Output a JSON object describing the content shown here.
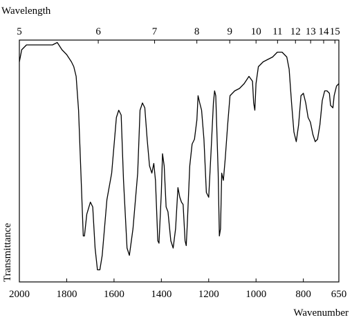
{
  "chart_data": {
    "type": "line",
    "x2_label": "Wavelength",
    "xlabel": "Wavenumber",
    "ylabel": "Transmittance",
    "xlim": [
      2000,
      650
    ],
    "xticks": [
      2000,
      1800,
      1600,
      1400,
      1200,
      1000,
      800,
      650
    ],
    "x2ticks": [
      5,
      6,
      7,
      8,
      9,
      10,
      11,
      12,
      13,
      14,
      15
    ],
    "ylim": [
      0,
      100
    ],
    "color": "#000000",
    "x": [
      2000,
      1990,
      1970,
      1940,
      1900,
      1860,
      1840,
      1820,
      1800,
      1780,
      1770,
      1760,
      1750,
      1740,
      1730,
      1725,
      1715,
      1700,
      1690,
      1680,
      1670,
      1660,
      1650,
      1630,
      1610,
      1590,
      1580,
      1570,
      1560,
      1545,
      1535,
      1520,
      1500,
      1490,
      1480,
      1470,
      1460,
      1450,
      1440,
      1432,
      1425,
      1415,
      1410,
      1400,
      1395,
      1388,
      1380,
      1372,
      1360,
      1350,
      1340,
      1330,
      1322,
      1315,
      1308,
      1300,
      1295,
      1290,
      1280,
      1270,
      1260,
      1250,
      1245,
      1238,
      1230,
      1220,
      1210,
      1200,
      1190,
      1180,
      1175,
      1170,
      1160,
      1155,
      1150,
      1145,
      1138,
      1130,
      1120,
      1110,
      1090,
      1070,
      1050,
      1030,
      1015,
      1010,
      1005,
      1000,
      990,
      970,
      950,
      930,
      910,
      890,
      870,
      860,
      850,
      840,
      830,
      820,
      810,
      800,
      790,
      780,
      770,
      760,
      750,
      740,
      730,
      720,
      710,
      700,
      690,
      685,
      675,
      670,
      660,
      650
    ],
    "values": [
      91,
      96,
      98,
      98,
      98,
      98,
      99,
      96,
      94,
      91,
      89,
      85,
      71,
      45,
      19,
      19,
      28,
      33,
      31,
      14,
      5,
      5,
      11,
      34,
      45,
      68,
      71,
      69,
      42,
      14,
      11,
      22,
      45,
      71,
      74,
      72,
      59,
      48,
      45,
      49,
      42,
      17,
      16,
      37,
      53,
      48,
      31,
      29,
      17,
      14,
      22,
      39,
      35,
      33,
      32,
      17,
      15,
      25,
      48,
      57,
      59,
      67,
      77,
      74,
      71,
      59,
      37,
      35,
      54,
      74,
      79,
      77,
      45,
      19,
      22,
      45,
      42,
      51,
      65,
      77,
      79,
      80,
      82,
      85,
      83,
      74,
      71,
      82,
      89,
      91,
      92,
      93,
      95,
      95,
      93,
      88,
      74,
      62,
      58,
      65,
      77,
      78,
      74,
      68,
      66,
      61,
      58,
      59,
      65,
      75,
      79,
      79,
      78,
      73,
      72,
      77,
      81,
      82
    ]
  }
}
